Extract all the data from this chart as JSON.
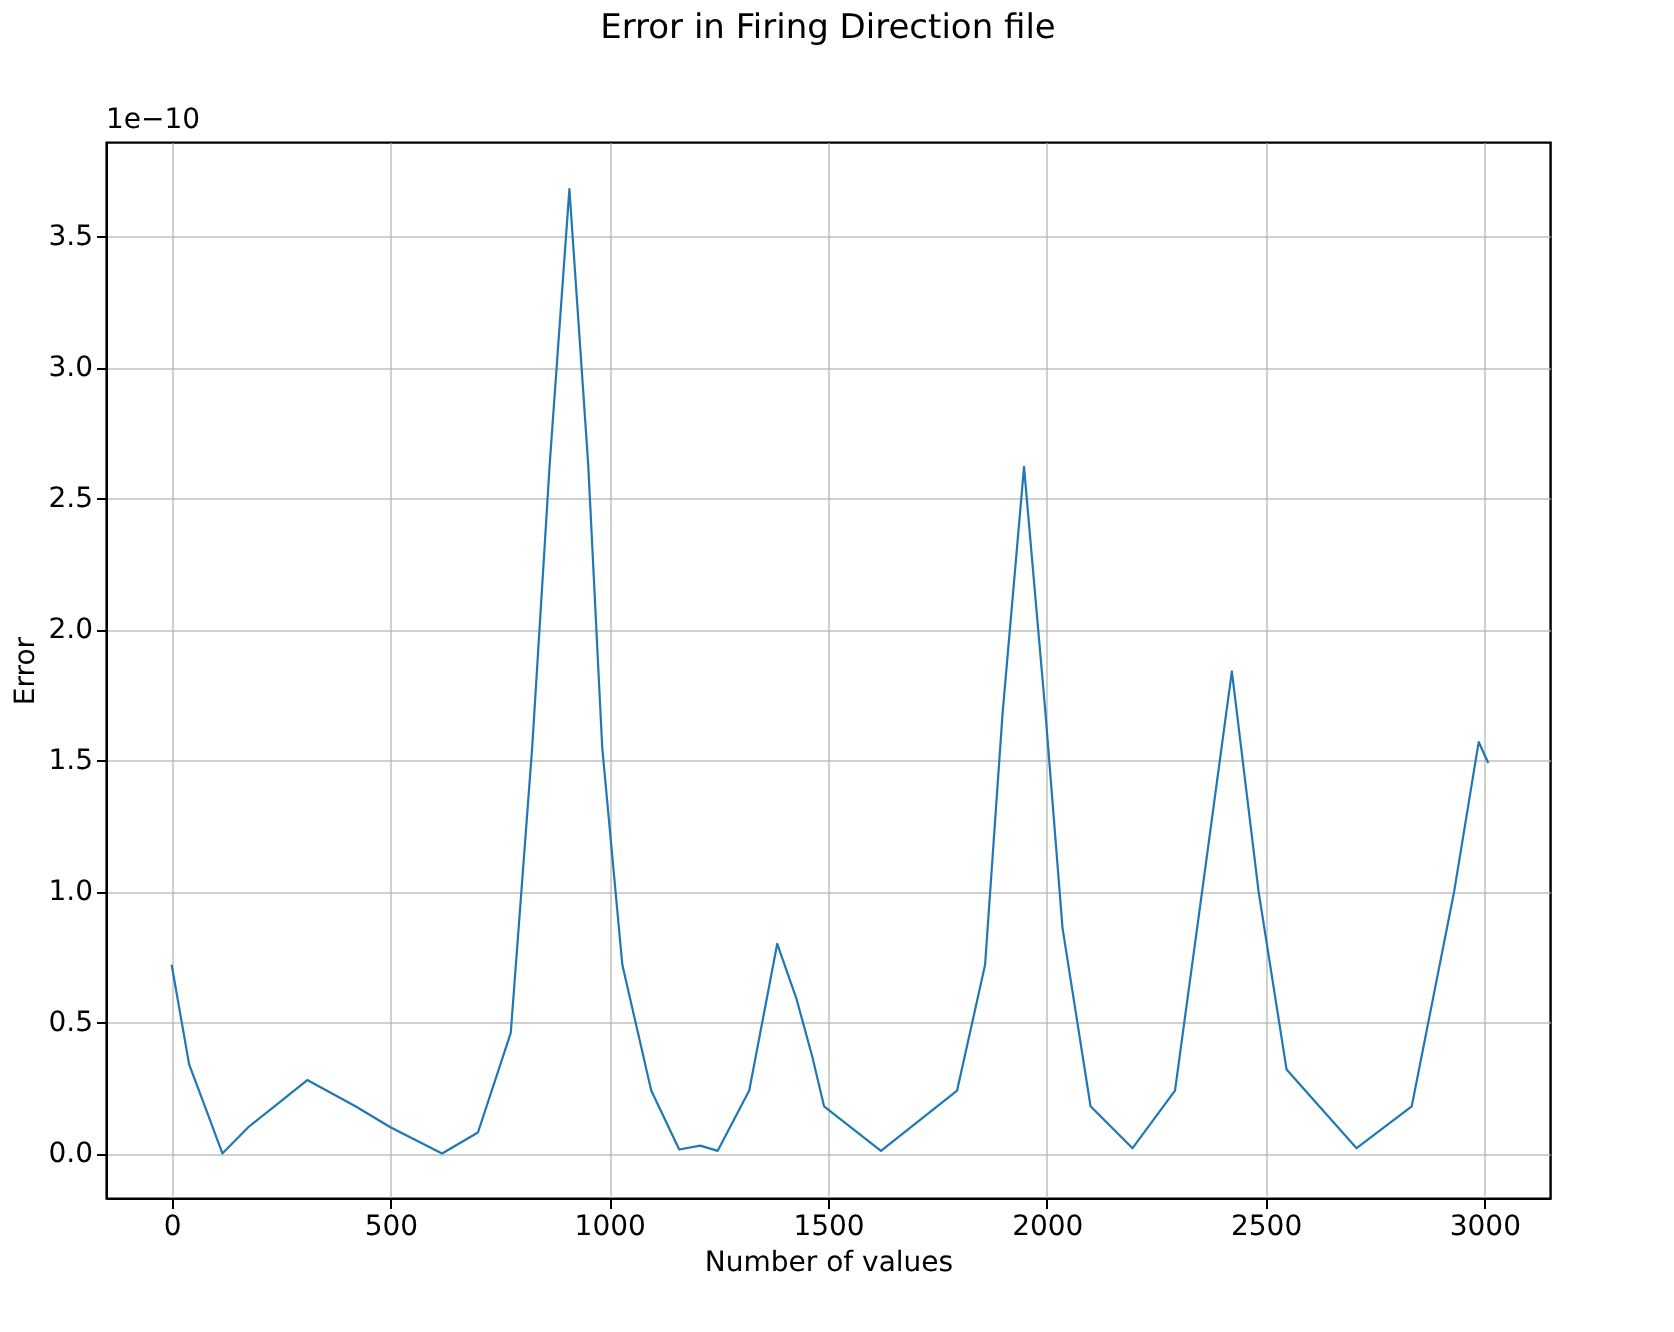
{
  "chart_data": {
    "type": "line",
    "title": "Error in Firing Direction file",
    "xlabel": "Number of values",
    "ylabel": "Error",
    "annotations": [
      "1e−10"
    ],
    "x": [
      0,
      40,
      85,
      116,
      175,
      250,
      310,
      420,
      500,
      618,
      700,
      775,
      824,
      864,
      909,
      952,
      984,
      1030,
      1096,
      1160,
      1208,
      1248,
      1320,
      1384,
      1428,
      1464,
      1491,
      1621,
      1795,
      1859,
      1899,
      1948,
      1997,
      2036,
      2100,
      2196,
      2293,
      2355,
      2423,
      2484,
      2548,
      2708,
      2834,
      2931,
      2987,
      3009
    ],
    "series": [
      {
        "color": "#1f77b4",
        "values": [
          0.72,
          0.34,
          0.14,
          0.0,
          0.1,
          0.2,
          0.28,
          0.18,
          0.1,
          0.0,
          0.08,
          0.46,
          1.55,
          2.63,
          3.68,
          2.63,
          1.55,
          0.72,
          0.24,
          0.015,
          0.03,
          0.01,
          0.24,
          0.8,
          0.59,
          0.37,
          0.18,
          0.01,
          0.24,
          0.72,
          1.68,
          2.62,
          1.68,
          0.86,
          0.18,
          0.02,
          0.24,
          1.0,
          1.84,
          1.0,
          0.32,
          0.02,
          0.18,
          1.0,
          1.57,
          1.49
        ]
      }
    ],
    "xlim": [
      -150,
      3150
    ],
    "ylim": [
      -0.17,
      3.86
    ],
    "xticks": [
      0,
      500,
      1000,
      1500,
      2000,
      2500,
      3000
    ],
    "yticks": [
      {
        "value": 0,
        "label": "0.0"
      },
      0.5,
      {
        "value": 1,
        "label": "1.0"
      },
      1.5,
      {
        "value": 2,
        "label": "2.0"
      },
      2.5,
      {
        "value": 3,
        "label": "3.0"
      },
      3.5
    ],
    "grid": true,
    "marker": "none",
    "line_style": "solid"
  }
}
